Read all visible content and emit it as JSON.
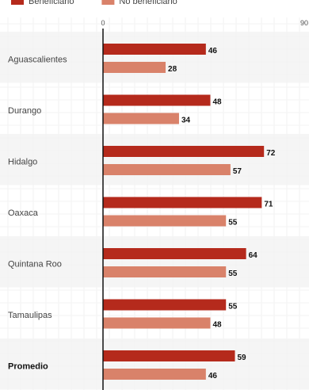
{
  "chart_data": {
    "type": "bar",
    "orientation": "horizontal",
    "categories": [
      "Aguascalientes",
      "Durango",
      "Hidalgo",
      "Oaxaca",
      "Quintana Roo",
      "Tamaulipas",
      "Promedio"
    ],
    "series": [
      {
        "name": "Beneficiario",
        "color": "#b52a1c",
        "values": [
          46,
          48,
          72,
          71,
          64,
          55,
          59
        ]
      },
      {
        "name": "No beneficiario",
        "color": "#d9826a",
        "values": [
          28,
          34,
          57,
          55,
          55,
          48,
          46
        ]
      }
    ],
    "xlim": [
      0,
      90
    ],
    "ticks": [
      "0",
      "90"
    ],
    "grid": true,
    "legend_position": "top-left",
    "highlight_category": "Promedio"
  }
}
